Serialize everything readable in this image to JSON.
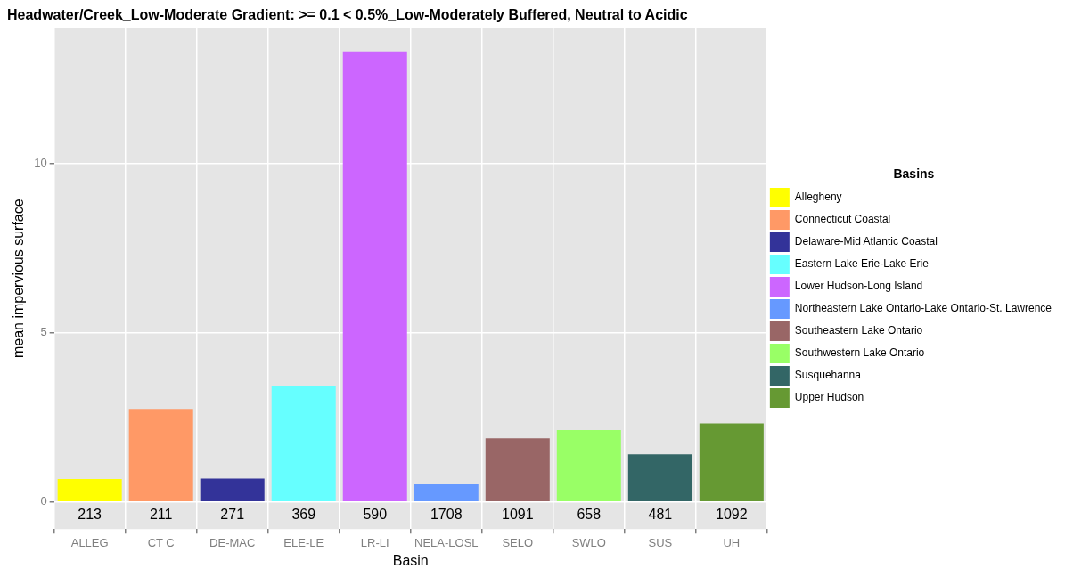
{
  "chart_data": {
    "type": "bar",
    "title": "Headwater/Creek_Low-Moderate Gradient: >= 0.1 < 0.5%_Low-Moderately Buffered, Neutral to Acidic",
    "xlabel": "Basin",
    "ylabel": "mean impervious surface",
    "legend_title": "Basins",
    "categories": [
      "ALLEG",
      "CT C",
      "DE-MAC",
      "ELE-LE",
      "LR-LI",
      "NELA-LOSL",
      "SELO",
      "SWLO",
      "SUS",
      "UH"
    ],
    "series": [
      {
        "name": "Allegheny",
        "color": "#ffff00",
        "values": [
          0.68,
          null,
          null,
          null,
          null,
          null,
          null,
          null,
          null,
          null
        ]
      },
      {
        "name": "Connecticut Coastal",
        "color": "#ff9966",
        "values": [
          null,
          2.75,
          null,
          null,
          null,
          null,
          null,
          null,
          null,
          null
        ]
      },
      {
        "name": "Delaware-Mid Atlantic Coastal",
        "color": "#333399",
        "values": [
          null,
          null,
          0.69,
          null,
          null,
          null,
          null,
          null,
          null,
          null
        ]
      },
      {
        "name": "Eastern Lake Erie-Lake Erie",
        "color": "#66ffff",
        "values": [
          null,
          null,
          null,
          3.41,
          null,
          null,
          null,
          null,
          null,
          null
        ]
      },
      {
        "name": "Lower Hudson-Long Island",
        "color": "#cc66ff",
        "values": [
          null,
          null,
          null,
          null,
          13.3,
          null,
          null,
          null,
          null,
          null
        ]
      },
      {
        "name": "Northeastern Lake Ontario-Lake Ontario-St. Lawrence",
        "color": "#6699ff",
        "values": [
          null,
          null,
          null,
          null,
          null,
          0.53,
          null,
          null,
          null,
          null
        ]
      },
      {
        "name": "Southeastern Lake Ontario",
        "color": "#996666",
        "values": [
          null,
          null,
          null,
          null,
          null,
          null,
          1.88,
          null,
          null,
          null
        ]
      },
      {
        "name": "Southwestern Lake Ontario",
        "color": "#99ff66",
        "values": [
          null,
          null,
          null,
          null,
          null,
          null,
          null,
          2.12,
          null,
          null
        ]
      },
      {
        "name": "Susquehanna",
        "color": "#336666",
        "values": [
          null,
          null,
          null,
          null,
          null,
          null,
          null,
          null,
          1.41,
          null
        ]
      },
      {
        "name": "Upper Hudson",
        "color": "#669933",
        "values": [
          null,
          null,
          null,
          null,
          null,
          null,
          null,
          null,
          null,
          2.32
        ]
      }
    ],
    "annotations": [
      "213",
      "211",
      "271",
      "369",
      "590",
      "1708",
      "1091",
      "658",
      "481",
      "1092"
    ],
    "ylim": [
      -0.8,
      14
    ],
    "yticks": [
      0,
      5,
      10
    ],
    "grid": true,
    "legend": "right"
  }
}
